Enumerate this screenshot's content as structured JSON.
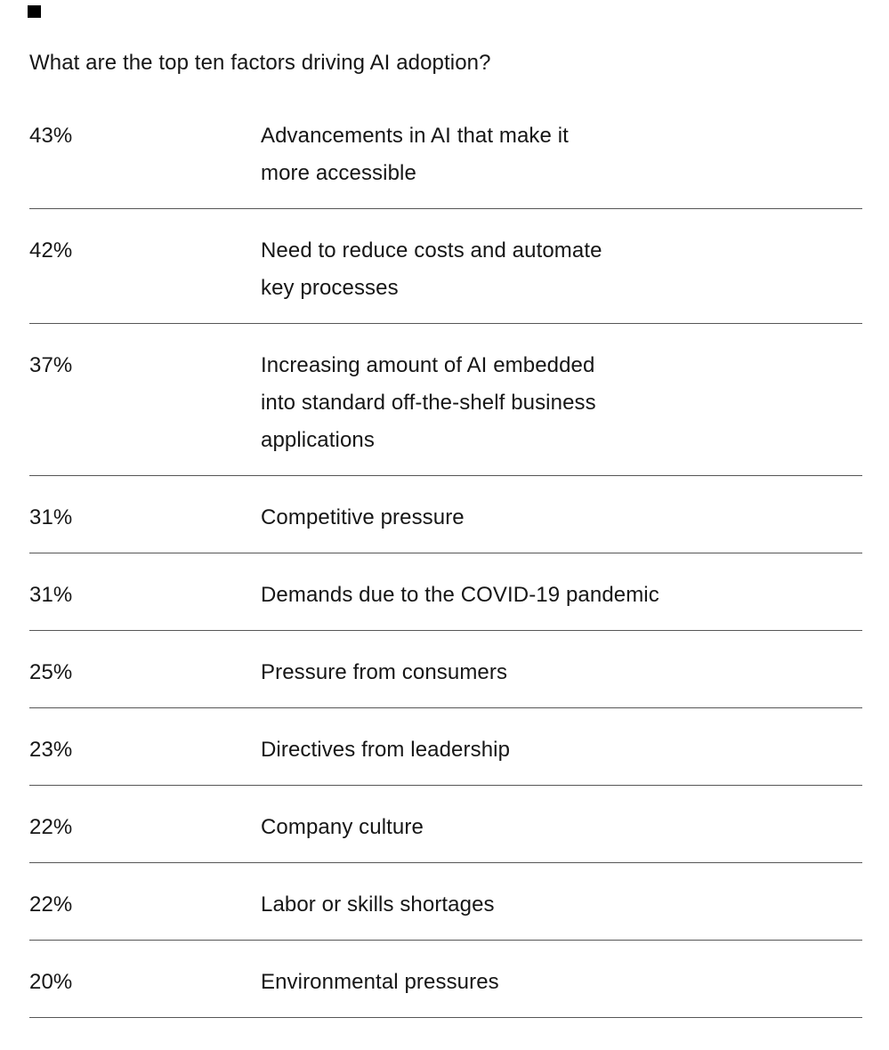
{
  "figure": {
    "title": "What are the top ten factors driving AI adoption?",
    "marker_icon": "black-square",
    "colors": {
      "background": "#ffffff",
      "text": "#161616",
      "divider": "#565656",
      "marker": "#000000"
    }
  },
  "chart_data": {
    "type": "table",
    "title": "What are the top ten factors driving AI adoption?",
    "columns": [
      "percent",
      "factor"
    ],
    "legend": null,
    "rows": [
      {
        "percent": "43%",
        "value": 43,
        "factor": "Advancements in AI that make it more accessible",
        "factor_lines": [
          "Advancements in AI that make it",
          "more accessible"
        ]
      },
      {
        "percent": "42%",
        "value": 42,
        "factor": "Need to reduce costs and automate key processes",
        "factor_lines": [
          "Need to reduce costs and automate",
          "key processes"
        ]
      },
      {
        "percent": "37%",
        "value": 37,
        "factor": "Increasing amount of AI embedded into standard off-the-shelf business applications",
        "factor_lines": [
          "Increasing amount of AI embedded",
          "into standard off-the-shelf business",
          "applications"
        ]
      },
      {
        "percent": "31%",
        "value": 31,
        "factor": "Competitive pressure",
        "factor_lines": [
          "Competitive pressure"
        ]
      },
      {
        "percent": "31%",
        "value": 31,
        "factor": "Demands due to the COVID-19 pandemic",
        "factor_lines": [
          "Demands due to the COVID-19 pandemic"
        ]
      },
      {
        "percent": "25%",
        "value": 25,
        "factor": "Pressure from consumers",
        "factor_lines": [
          "Pressure from consumers"
        ]
      },
      {
        "percent": "23%",
        "value": 23,
        "factor": "Directives from leadership",
        "factor_lines": [
          "Directives from leadership"
        ]
      },
      {
        "percent": "22%",
        "value": 22,
        "factor": "Company culture",
        "factor_lines": [
          "Company culture"
        ]
      },
      {
        "percent": "22%",
        "value": 22,
        "factor": "Labor or skills shortages",
        "factor_lines": [
          "Labor or skills shortages"
        ]
      },
      {
        "percent": "20%",
        "value": 20,
        "factor": "Environmental pressures",
        "factor_lines": [
          "Environmental pressures"
        ]
      }
    ]
  }
}
